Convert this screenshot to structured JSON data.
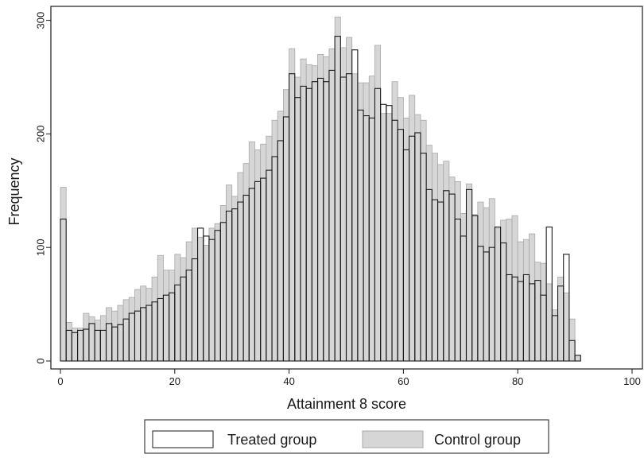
{
  "chart_data": {
    "type": "bar",
    "title": "",
    "xlabel": "Attainment 8 score",
    "ylabel": "Frequency",
    "xlim": [
      0,
      100
    ],
    "ylim": [
      0,
      300
    ],
    "x_ticks": [
      "0",
      "20",
      "40",
      "60",
      "80",
      "100"
    ],
    "y_ticks": [
      "0",
      "100",
      "200",
      "300"
    ],
    "grid": false,
    "legend_position": "bottom",
    "bin_width": 1,
    "bins_start": 0,
    "series": [
      {
        "name": "Treated group",
        "fill": "#ffffff",
        "edge": "#1a1a1a",
        "values": [
          125,
          27,
          25,
          27,
          28,
          33,
          27,
          27,
          33,
          30,
          32,
          37,
          42,
          44,
          47,
          49,
          52,
          55,
          58,
          60,
          67,
          74,
          80,
          90,
          117,
          110,
          107,
          115,
          122,
          132,
          134,
          140,
          146,
          152,
          158,
          161,
          168,
          180,
          194,
          215,
          253,
          232,
          242,
          240,
          246,
          249,
          246,
          256,
          286,
          250,
          253,
          274,
          221,
          216,
          214,
          240,
          226,
          225,
          212,
          204,
          186,
          198,
          201,
          183,
          151,
          142,
          140,
          150,
          147,
          125,
          110,
          151,
          128,
          101,
          96,
          100,
          118,
          104,
          76,
          74,
          70,
          76,
          68,
          71,
          58,
          118,
          40,
          66,
          94,
          18,
          5
        ]
      },
      {
        "name": "Control group",
        "fill": "#d6d6d6",
        "edge": "#a8a8a8",
        "values": [
          153,
          34,
          29,
          29,
          42,
          39,
          36,
          40,
          47,
          44,
          49,
          54,
          56,
          63,
          66,
          64,
          74,
          93,
          80,
          80,
          94,
          91,
          105,
          117,
          109,
          102,
          117,
          121,
          137,
          155,
          145,
          166,
          174,
          193,
          186,
          191,
          198,
          212,
          220,
          239,
          275,
          250,
          266,
          261,
          260,
          270,
          268,
          275,
          303,
          276,
          285,
          253,
          245,
          245,
          251,
          278,
          218,
          218,
          246,
          232,
          214,
          234,
          217,
          212,
          190,
          183,
          173,
          176,
          162,
          158,
          130,
          156,
          129,
          140,
          135,
          143,
          117,
          124,
          125,
          128,
          105,
          107,
          112,
          87,
          86,
          68,
          45,
          74,
          60,
          37,
          5
        ]
      }
    ]
  }
}
